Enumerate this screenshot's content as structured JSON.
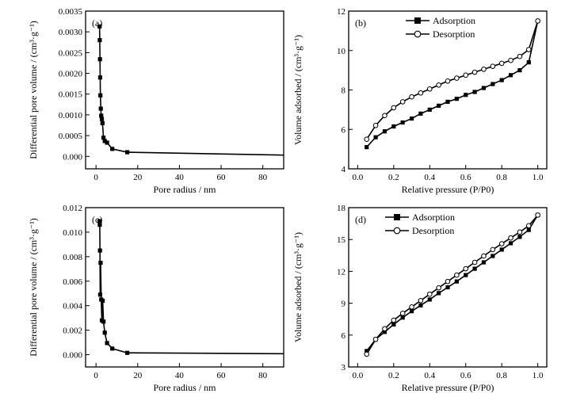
{
  "chart_data": [
    {
      "panel": "(a)",
      "type": "line",
      "xlabel": "Pore radius / nm",
      "ylabel": "Differential pore volume / (cm³·g⁻¹)",
      "xlim": [
        -5,
        90
      ],
      "ylim": [
        -0.0003,
        0.0035
      ],
      "xticks": [
        0,
        20,
        40,
        60,
        80
      ],
      "yticks": [
        0.0,
        0.0005,
        0.001,
        0.0015,
        0.002,
        0.0025,
        0.003,
        0.0035
      ],
      "ytick_labels": [
        "0.000",
        "0.0005",
        "0.0010",
        "0.0015",
        "0.0020",
        "0.0025",
        "0.0030",
        "0.0035"
      ],
      "grid": false,
      "series": [
        {
          "marker": "square-filled",
          "x": [
            1.7,
            1.8,
            1.9,
            2.0,
            2.1,
            2.3,
            2.5,
            2.8,
            3.1,
            3.6,
            4.2,
            5.3,
            7.8,
            15.0
          ],
          "y": [
            0.00313,
            0.0028,
            0.00234,
            0.0019,
            0.00147,
            0.00115,
            0.00098,
            0.0009,
            0.0008,
            0.00045,
            0.00037,
            0.00033,
            0.00018,
            0.0001
          ]
        }
      ],
      "tail": {
        "x": [
          15.0,
          90.0
        ],
        "y": [
          0.0001,
          3e-05
        ]
      }
    },
    {
      "panel": "(b)",
      "type": "line",
      "xlabel": "Relative pressure (P/P0)",
      "ylabel": "Volume adsorbed / (cm³·g⁻¹)",
      "xlim": [
        -0.05,
        1.05
      ],
      "ylim": [
        4,
        12
      ],
      "xticks": [
        0.0,
        0.2,
        0.4,
        0.6,
        0.8,
        1.0
      ],
      "xtick_labels": [
        "0.0",
        "0.2",
        "0.4",
        "0.6",
        "0.8",
        "1.0"
      ],
      "yticks": [
        4,
        6,
        8,
        10,
        12
      ],
      "ytick_labels": [
        "4",
        "6",
        "8",
        "10",
        "12"
      ],
      "grid": false,
      "legend": "top-center",
      "series": [
        {
          "name": "Adsorption",
          "marker": "square-filled",
          "x": [
            0.05,
            0.1,
            0.15,
            0.2,
            0.25,
            0.3,
            0.35,
            0.4,
            0.45,
            0.5,
            0.55,
            0.6,
            0.65,
            0.7,
            0.75,
            0.8,
            0.85,
            0.9,
            0.95,
            1.0
          ],
          "y": [
            5.1,
            5.6,
            5.9,
            6.15,
            6.35,
            6.55,
            6.8,
            7.0,
            7.2,
            7.4,
            7.55,
            7.75,
            7.9,
            8.1,
            8.3,
            8.5,
            8.75,
            9.0,
            9.4,
            11.5
          ]
        },
        {
          "name": "Desorption",
          "marker": "circle-open",
          "x": [
            0.05,
            0.1,
            0.15,
            0.2,
            0.25,
            0.3,
            0.35,
            0.4,
            0.45,
            0.5,
            0.55,
            0.6,
            0.65,
            0.7,
            0.75,
            0.8,
            0.85,
            0.9,
            0.95,
            1.0
          ],
          "y": [
            5.5,
            6.2,
            6.7,
            7.1,
            7.4,
            7.65,
            7.85,
            8.05,
            8.25,
            8.45,
            8.6,
            8.75,
            8.9,
            9.05,
            9.2,
            9.35,
            9.5,
            9.7,
            10.05,
            11.5
          ]
        }
      ]
    },
    {
      "panel": "(c)",
      "type": "line",
      "xlabel": "Pore radius / nm",
      "ylabel": "Differential pore volume / (cm³·g⁻¹)",
      "xlim": [
        -5,
        90
      ],
      "ylim": [
        -0.001,
        0.012
      ],
      "xticks": [
        0,
        20,
        40,
        60,
        80
      ],
      "yticks": [
        0.0,
        0.002,
        0.004,
        0.006,
        0.008,
        0.01,
        0.012
      ],
      "ytick_labels": [
        "0.000",
        "0.002",
        "0.004",
        "0.006",
        "0.008",
        "0.010",
        "0.012"
      ],
      "grid": false,
      "series": [
        {
          "marker": "square-filled",
          "x": [
            1.7,
            1.8,
            1.9,
            2.0,
            2.2,
            2.5,
            2.8,
            3.2,
            3.6,
            4.2,
            5.3,
            7.8,
            15.0
          ],
          "y": [
            0.0109,
            0.0106,
            0.0085,
            0.0049,
            0.0075,
            0.0045,
            0.0028,
            0.0044,
            0.0027,
            0.0018,
            0.00095,
            0.0005,
            0.00015
          ]
        }
      ],
      "tail": {
        "x": [
          15.0,
          90.0
        ],
        "y": [
          0.00015,
          8e-05
        ]
      }
    },
    {
      "panel": "(d)",
      "type": "line",
      "xlabel": "Relative pressure (P/P0)",
      "ylabel": "Volume adsorbed / (cm³·g⁻¹)",
      "xlim": [
        -0.05,
        1.05
      ],
      "ylim": [
        3,
        18
      ],
      "xticks": [
        0.0,
        0.2,
        0.4,
        0.6,
        0.8,
        1.0
      ],
      "xtick_labels": [
        "0.0",
        "0.2",
        "0.4",
        "0.6",
        "0.8",
        "1.0"
      ],
      "yticks": [
        3,
        6,
        9,
        12,
        15,
        18
      ],
      "ytick_labels": [
        "3",
        "6",
        "9",
        "12",
        "15",
        "18"
      ],
      "grid": false,
      "legend": "top-left",
      "series": [
        {
          "name": "Adsorption",
          "marker": "square-filled",
          "x": [
            0.05,
            0.1,
            0.15,
            0.2,
            0.25,
            0.3,
            0.35,
            0.4,
            0.45,
            0.5,
            0.55,
            0.6,
            0.65,
            0.7,
            0.75,
            0.8,
            0.85,
            0.9,
            0.95,
            1.0
          ],
          "y": [
            4.5,
            5.6,
            6.3,
            7.0,
            7.65,
            8.25,
            8.8,
            9.35,
            9.95,
            10.5,
            11.05,
            11.65,
            12.25,
            12.85,
            13.45,
            14.05,
            14.65,
            15.25,
            15.9,
            17.3
          ]
        },
        {
          "name": "Desorption",
          "marker": "circle-open",
          "x": [
            0.05,
            0.1,
            0.15,
            0.2,
            0.25,
            0.3,
            0.35,
            0.4,
            0.45,
            0.5,
            0.55,
            0.6,
            0.65,
            0.7,
            0.75,
            0.8,
            0.85,
            0.9,
            0.95,
            1.0
          ],
          "y": [
            4.2,
            5.6,
            6.6,
            7.4,
            8.05,
            8.65,
            9.25,
            9.85,
            10.45,
            11.05,
            11.65,
            12.25,
            12.85,
            13.45,
            14.05,
            14.6,
            15.15,
            15.7,
            16.3,
            17.3
          ]
        }
      ]
    }
  ]
}
